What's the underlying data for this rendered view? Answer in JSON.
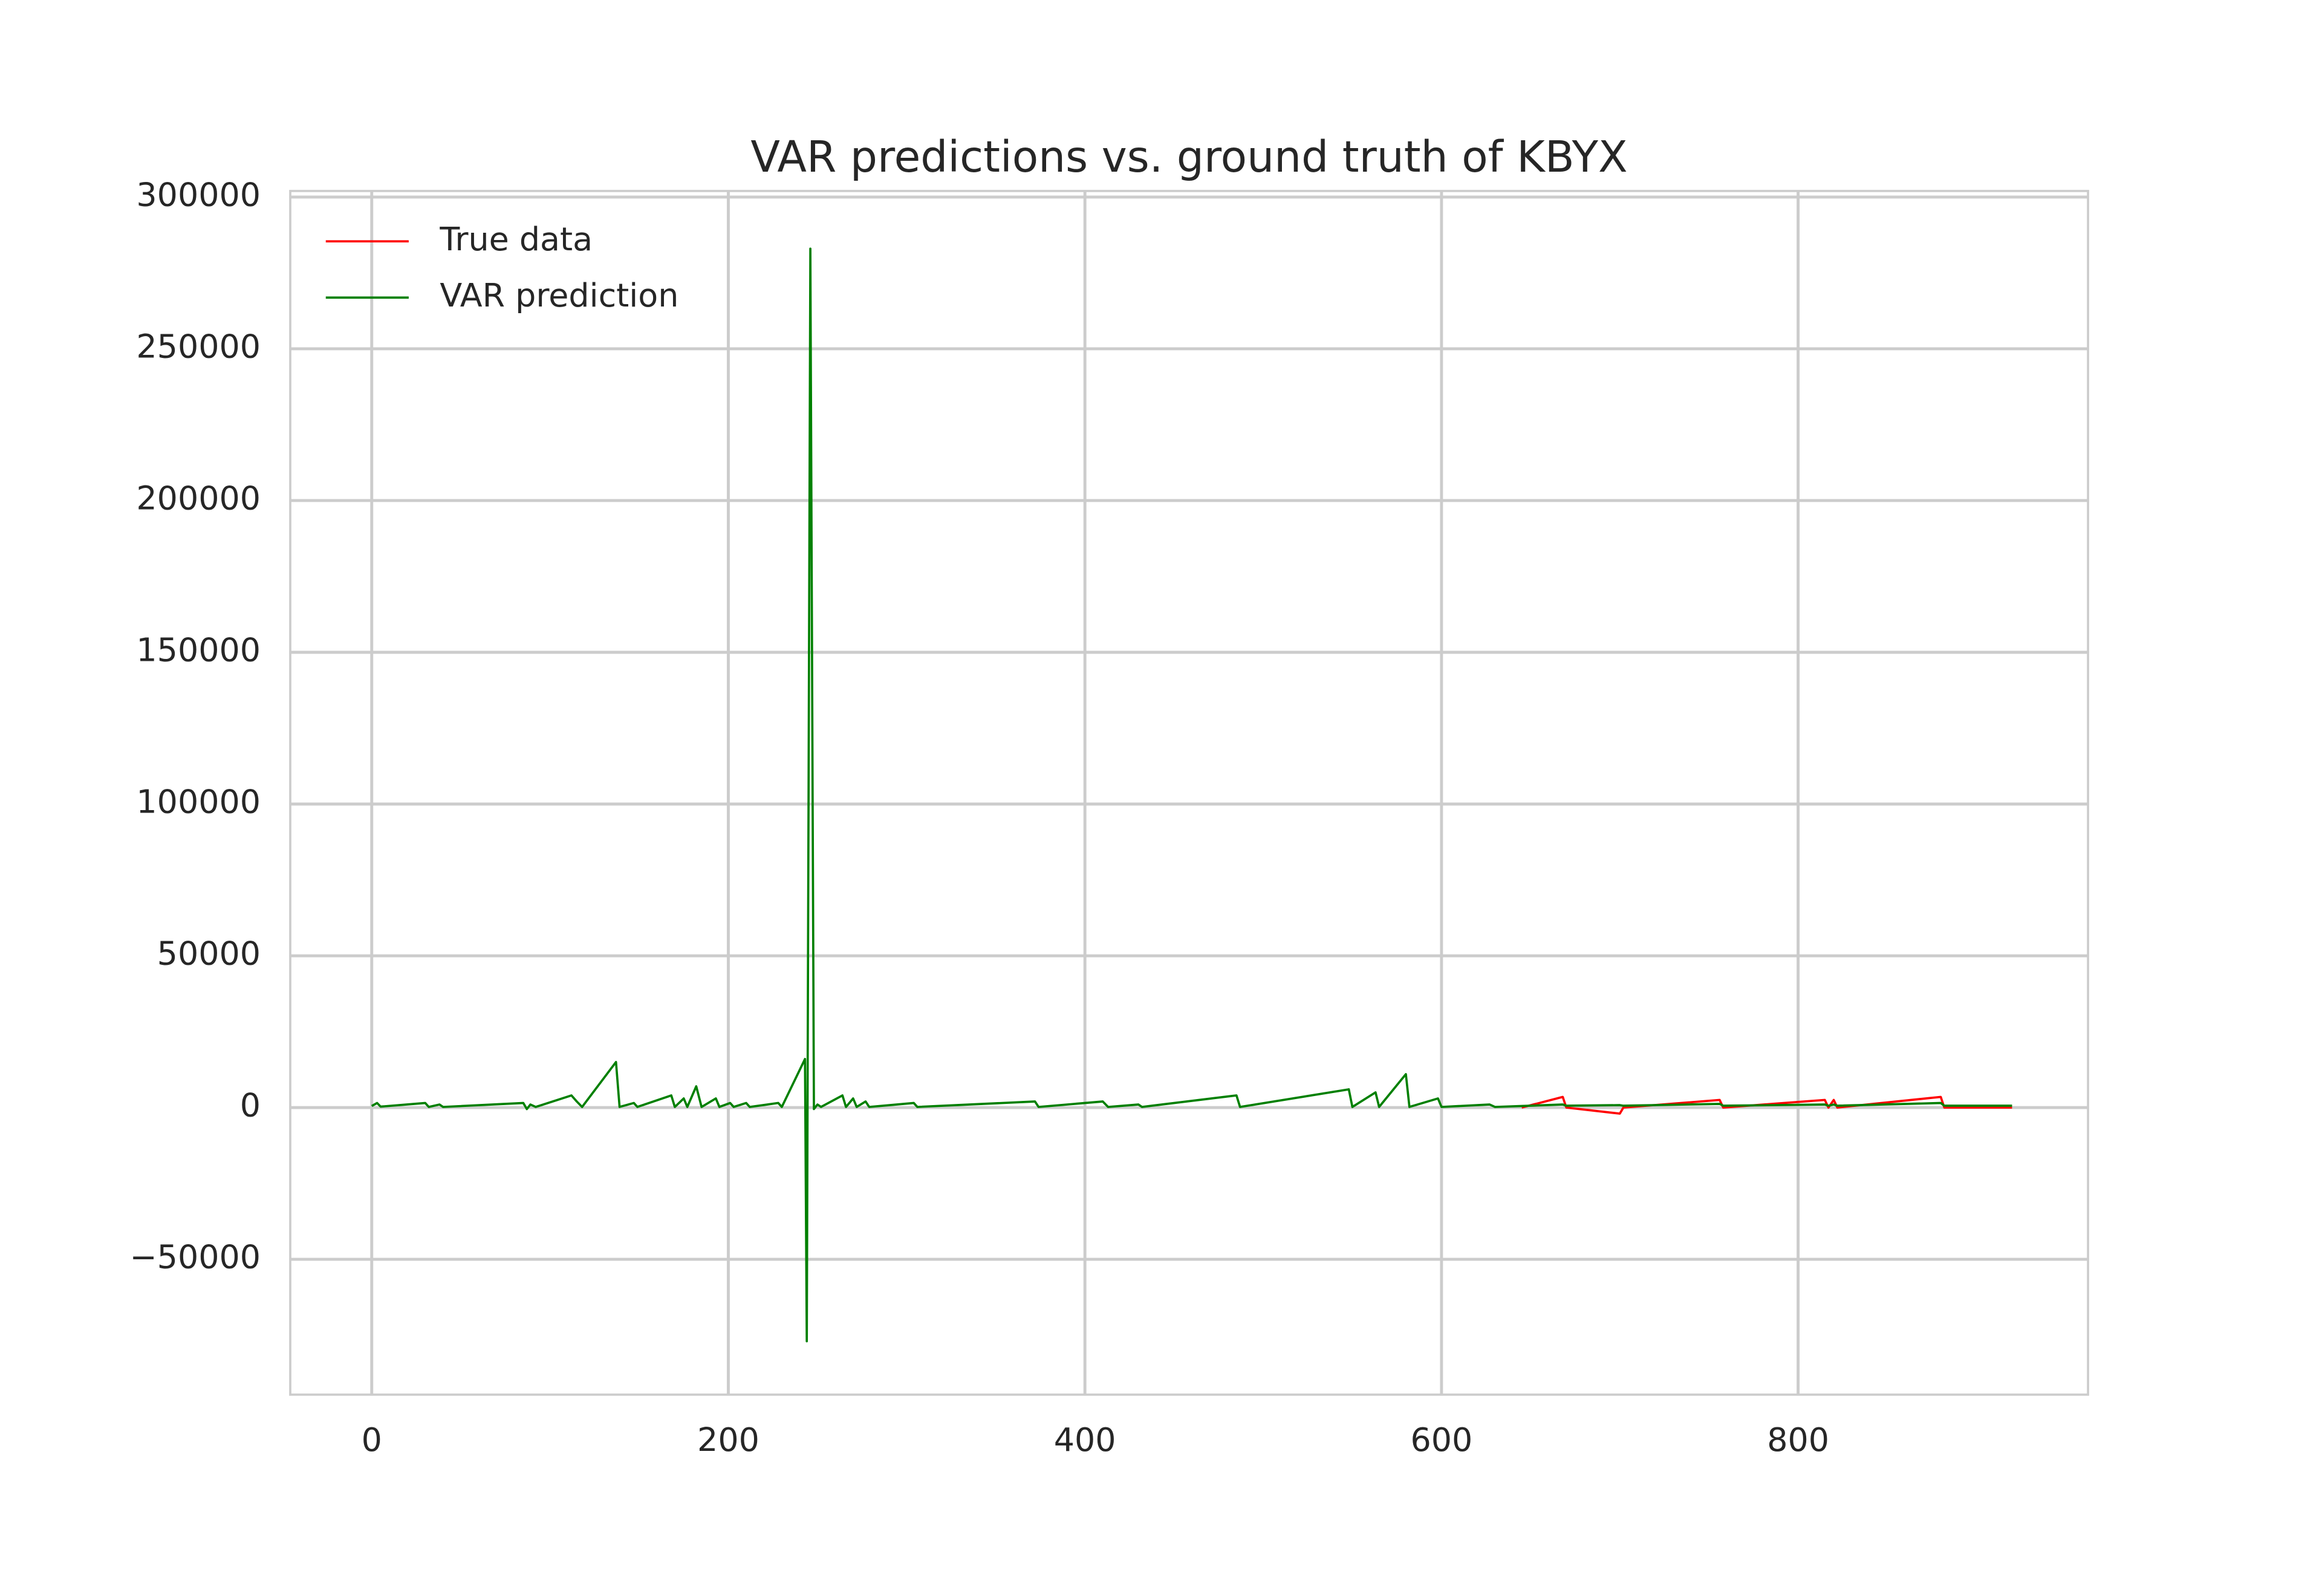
{
  "chart_data": {
    "type": "line",
    "title": "VAR predictions vs. ground truth of KBYX",
    "x": [
      0,
      3,
      5,
      30,
      32,
      38,
      40,
      85,
      87,
      89,
      92,
      112,
      115,
      118,
      137,
      139,
      147,
      149,
      168,
      170,
      175,
      177,
      182,
      185,
      193,
      195,
      201,
      203,
      210,
      212,
      228,
      230,
      243,
      244,
      246,
      248,
      250,
      252,
      264,
      266,
      270,
      272,
      277,
      279,
      304,
      306,
      372,
      374,
      410,
      413,
      430,
      432,
      485,
      487,
      548,
      550,
      563,
      565,
      580,
      582,
      598,
      600,
      627,
      630,
      645,
      668,
      670,
      700,
      702,
      756,
      758,
      815,
      817,
      820,
      822,
      880,
      882,
      920
    ],
    "series": [
      {
        "name": "True data",
        "color": "#ff0000",
        "values": [
          null,
          null,
          null,
          null,
          null,
          null,
          null,
          null,
          null,
          null,
          null,
          null,
          null,
          null,
          null,
          null,
          null,
          null,
          null,
          null,
          null,
          null,
          null,
          null,
          null,
          null,
          null,
          null,
          null,
          null,
          null,
          null,
          null,
          null,
          null,
          null,
          null,
          null,
          null,
          null,
          null,
          null,
          null,
          null,
          null,
          null,
          null,
          null,
          null,
          null,
          null,
          null,
          null,
          null,
          null,
          null,
          null,
          null,
          null,
          null,
          null,
          null,
          null,
          null,
          0,
          3500,
          0,
          -2000,
          0,
          2500,
          0,
          2500,
          0,
          2500,
          0,
          3500,
          0,
          0
        ]
      },
      {
        "name": "VAR prediction",
        "color": "#008000",
        "values": [
          500,
          1500,
          300,
          1500,
          200,
          1000,
          200,
          1500,
          -500,
          1000,
          200,
          4000,
          2000,
          200,
          15000,
          200,
          1500,
          200,
          4000,
          200,
          3000,
          200,
          7000,
          200,
          3000,
          200,
          1500,
          200,
          1500,
          200,
          1500,
          200,
          16000,
          -77000,
          283000,
          -500,
          1000,
          200,
          4000,
          200,
          3000,
          200,
          2000,
          200,
          1500,
          200,
          2000,
          200,
          2000,
          200,
          1000,
          200,
          4000,
          200,
          6000,
          200,
          5000,
          200,
          11000,
          200,
          3000,
          200,
          1000,
          200,
          500,
          1000,
          600,
          800,
          600,
          1200,
          600,
          1000,
          600,
          1000,
          600,
          1500,
          600,
          600
        ]
      }
    ],
    "xlim": [
      -45.7,
      962.6
    ],
    "xticks": [
      0,
      200,
      400,
      600,
      800
    ],
    "ylim": [
      -94600,
      302000
    ],
    "yticks": [
      {
        "value": -50000,
        "label": "−50000"
      },
      0,
      50000,
      100000,
      150000,
      200000,
      250000,
      300000
    ],
    "grid": true,
    "legend": "upper left"
  }
}
